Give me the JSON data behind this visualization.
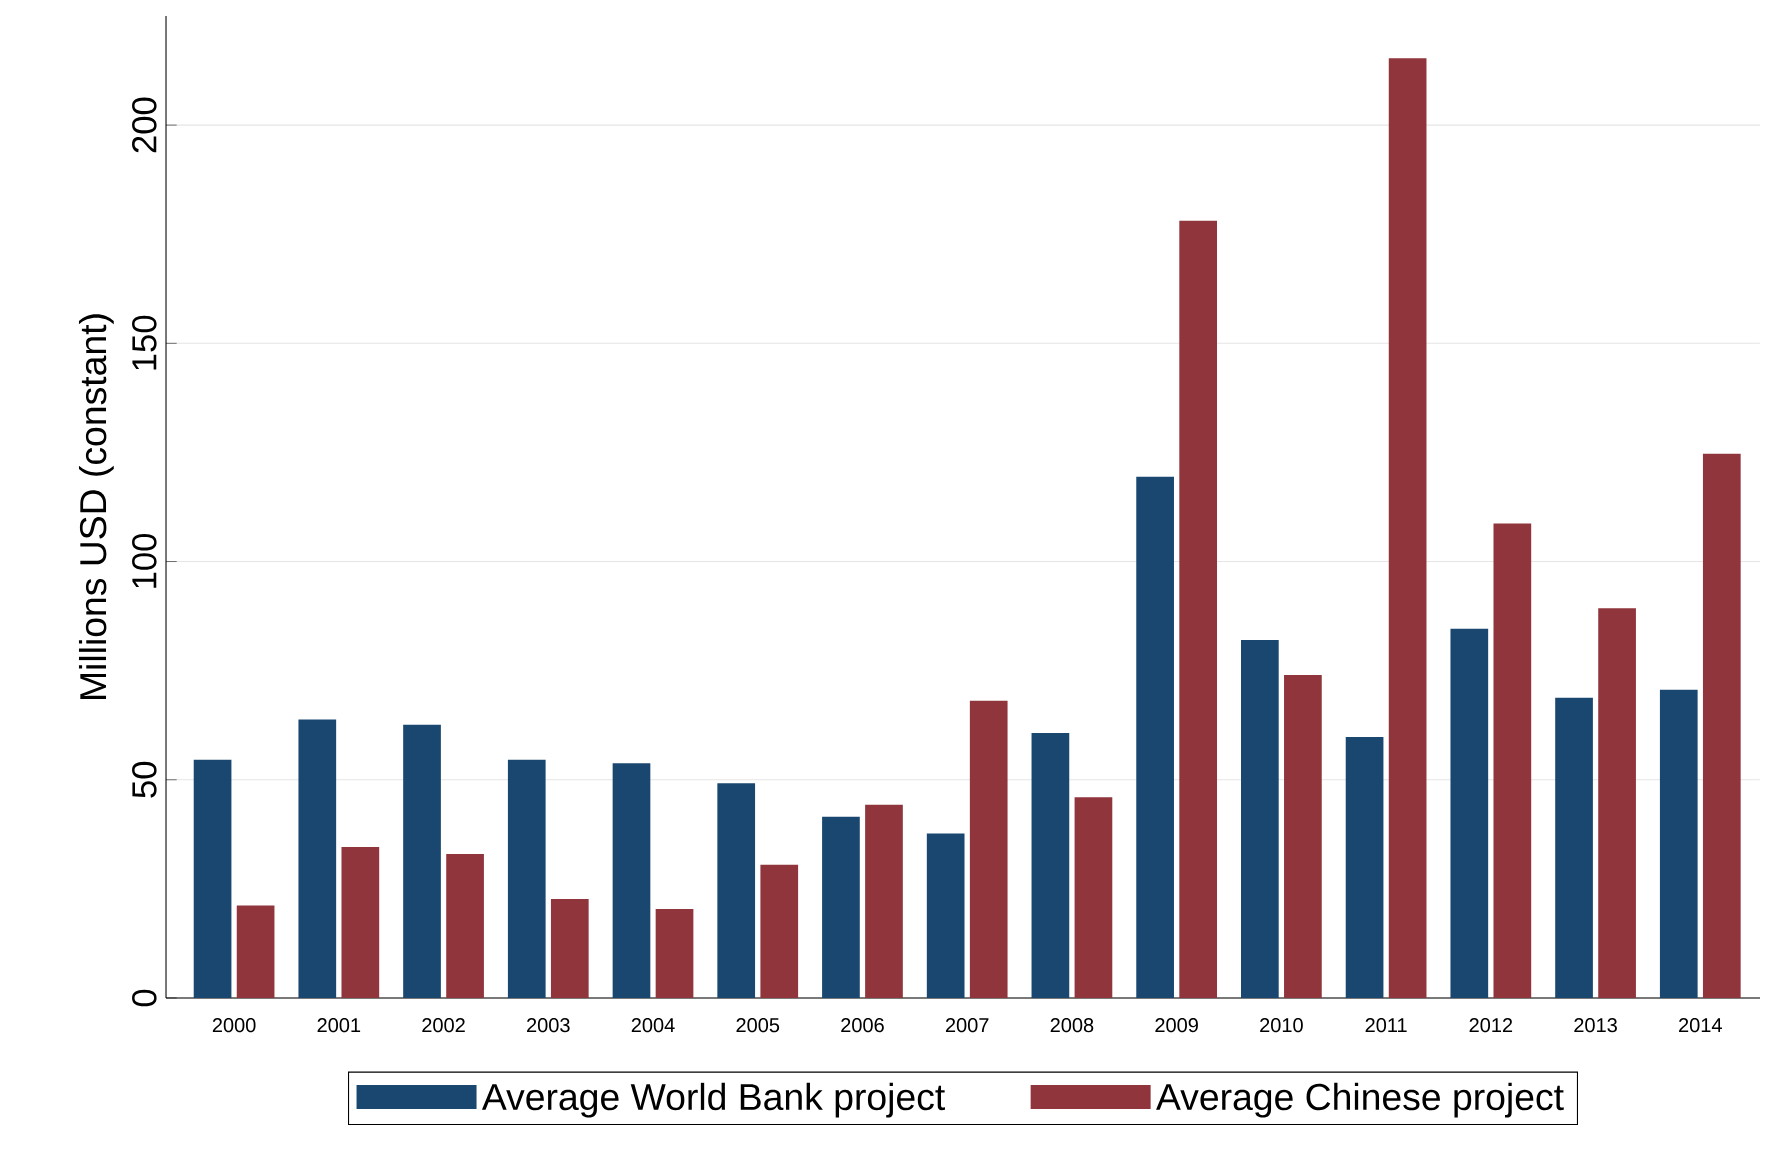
{
  "chart_data": {
    "type": "bar",
    "ylabel": "Millions USD (constant)",
    "categories": [
      "2000",
      "2001",
      "2002",
      "2003",
      "2004",
      "2005",
      "2006",
      "2007",
      "2008",
      "2009",
      "2010",
      "2011",
      "2012",
      "2013",
      "2014"
    ],
    "series": [
      {
        "name": "Average World Bank project",
        "color": "#1a476f",
        "values": [
          54.6,
          63.8,
          62.6,
          54.6,
          53.8,
          49.2,
          41.5,
          37.7,
          60.7,
          119.5,
          82.0,
          59.8,
          84.6,
          68.8,
          70.6
        ]
      },
      {
        "name": "Average Chinese project",
        "color": "#90353b",
        "values": [
          21.2,
          34.6,
          33.0,
          22.7,
          20.4,
          30.5,
          44.3,
          68.1,
          46.0,
          178.1,
          74.0,
          215.3,
          108.7,
          89.3,
          124.7
        ]
      }
    ],
    "ylim": [
      0,
      225
    ],
    "yticks": [
      0,
      50,
      100,
      150,
      200
    ],
    "grid": "y",
    "legend": "bottom"
  }
}
